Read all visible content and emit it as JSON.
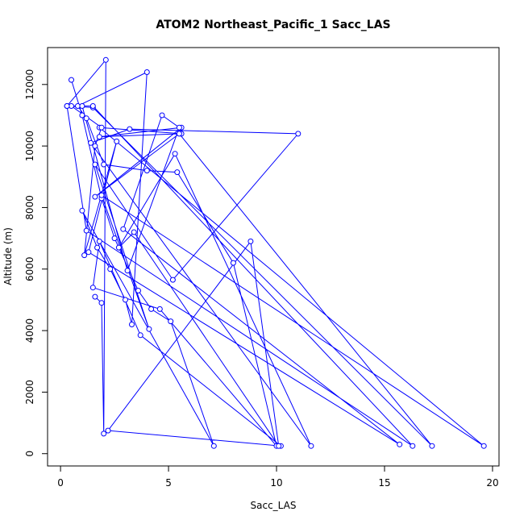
{
  "chart_data": {
    "type": "line",
    "title": "ATOM2 Northeast_Pacific_1 Sacc_LAS",
    "xlabel": "Sacc_LAS",
    "ylabel": "Altitude (m)",
    "xlim": [
      -0.6,
      20.3
    ],
    "ylim": [
      -400,
      13200
    ],
    "xticks": [
      0,
      5,
      10,
      15,
      20
    ],
    "yticks": [
      0,
      2000,
      4000,
      6000,
      8000,
      10000,
      12000
    ],
    "series_color": "#0000FF",
    "markers": "open-circle",
    "grid": false,
    "series": [
      {
        "x": [
          0.5,
          1.0,
          1.9,
          2.5,
          3.6,
          4.2,
          5.1,
          7.1,
          1.0,
          1.7,
          2.3,
          3.0,
          3.3,
          4.0,
          0.8,
          1.2,
          2.0,
          4.0,
          5.4,
          8.0,
          10.0,
          4.6,
          1.5,
          1.8,
          3.7,
          10.2,
          2.2,
          8.8,
          10.1,
          3.4,
          2.7,
          5.3,
          11.6,
          1.4,
          3.2,
          11.0,
          5.2,
          1.6,
          4.1,
          1.9,
          19.6,
          1.8,
          5.6,
          1.8,
          5.6,
          1.6,
          5.5,
          17.2,
          1.5,
          0.3,
          1.2,
          16.3,
          1.5,
          0.5,
          1.9,
          1.6,
          1.1,
          2.6,
          1.3,
          15.7,
          2.9,
          4.7,
          5.5,
          3.1,
          1.0,
          0.3,
          2.1,
          2.0,
          1.9,
          1.6
        ],
        "y": [
          12150,
          11000,
          8300,
          7000,
          5300,
          4700,
          4300,
          250,
          7900,
          6700,
          6000,
          5000,
          4200,
          12400,
          11300,
          10900,
          9400,
          9200,
          9150,
          6200,
          250,
          4700,
          5400,
          6900,
          3850,
          250,
          750,
          6900,
          250,
          7200,
          6700,
          9750,
          250,
          10100,
          10550,
          10400,
          5650,
          9400,
          4050,
          8400,
          250,
          10600,
          10400,
          10300,
          10600,
          8350,
          10400,
          250,
          11250,
          11300,
          7250,
          250,
          11300,
          11300,
          10600,
          10000,
          6450,
          10150,
          6550,
          300,
          7300,
          11000,
          10600,
          5950,
          11300,
          11300,
          12800,
          650,
          4900,
          5100
        ]
      }
    ]
  }
}
